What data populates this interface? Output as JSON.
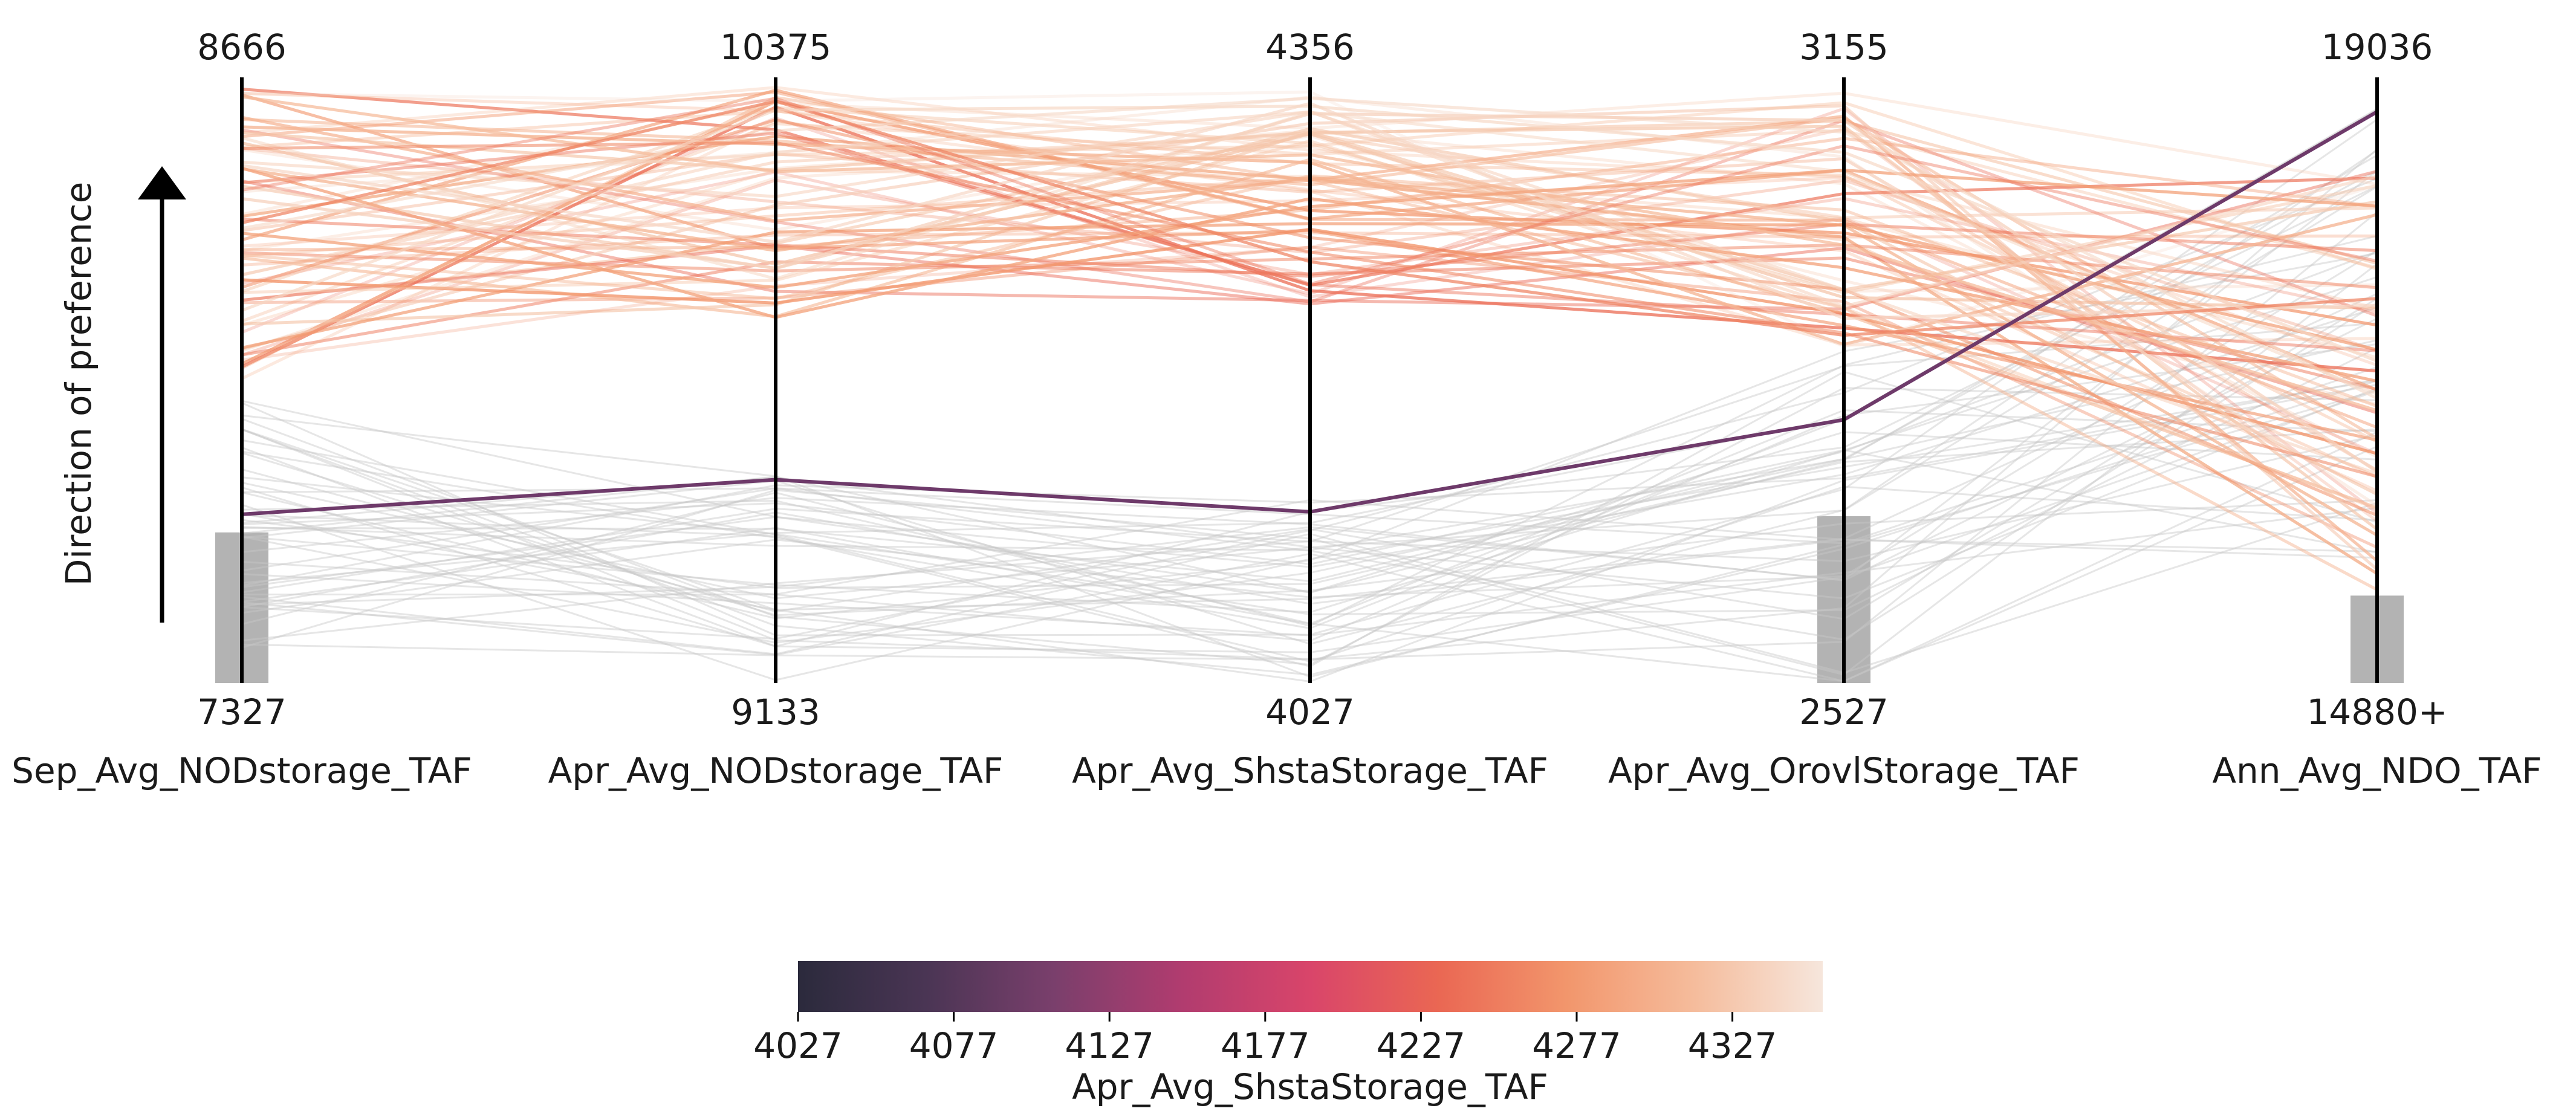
{
  "chart_data": {
    "type": "parallel_coordinates",
    "axes": [
      {
        "name": "Sep_Avg_NODstorage_TAF",
        "top": "8666",
        "bottom": "7327",
        "min": 7327,
        "max": 8666
      },
      {
        "name": "Apr_Avg_NODstorage_TAF",
        "top": "10375",
        "bottom": "9133",
        "min": 9133,
        "max": 10375
      },
      {
        "name": "Apr_Avg_ShstaStorage_TAF",
        "top": "4356",
        "bottom": "4027",
        "min": 4027,
        "max": 4356
      },
      {
        "name": "Apr_Avg_OrovlStorage_TAF",
        "top": "3155",
        "bottom": "2527",
        "min": 2527,
        "max": 3155
      },
      {
        "name": "Ann_Avg_NDO_TAF",
        "top": "19036",
        "bottom": "14880+",
        "min": 14880,
        "max": 19036
      }
    ],
    "direction_label": "Direction of preference",
    "color_axis": "Apr_Avg_ShstaStorage_TAF",
    "colorbar": {
      "label": "Apr_Avg_ShstaStorage_TAF",
      "ticks": [
        "4027",
        "4077",
        "4127",
        "4177",
        "4227",
        "4277",
        "4327"
      ],
      "min": 4027,
      "max": 4356,
      "stops": [
        "#2b2a3c",
        "#4a3554",
        "#7a3f6c",
        "#b13c6f",
        "#d9456a",
        "#ea6753",
        "#f2966c",
        "#f5bc9c",
        "#f6e6dc"
      ]
    },
    "highlighted_solution": {
      "values": [
        7700,
        9550,
        4120,
        2800,
        18800
      ],
      "color": "#6e3a6a"
    },
    "constraint_bars": [
      {
        "axis": 0,
        "from": 7327,
        "to": 7660
      },
      {
        "axis": 3,
        "from": 2527,
        "to": 2700
      },
      {
        "axis": 4,
        "from": 14880,
        "to": 15480
      }
    ],
    "preferred_solutions_count": 70,
    "filtered_solutions_count": 50
  }
}
